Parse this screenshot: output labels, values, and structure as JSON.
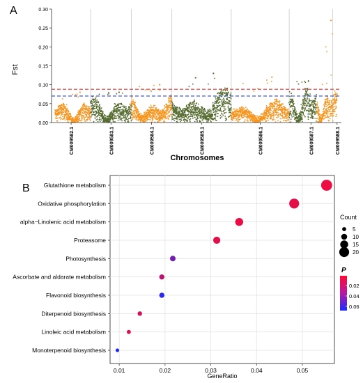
{
  "panel_a": {
    "label": "A",
    "ylabel": "Fst",
    "xlabel": "Chromosomes",
    "yticks": [
      "0.00",
      "0.05",
      "0.10",
      "0.15",
      "0.20",
      "0.25",
      "0.30"
    ],
    "chromosomes": [
      "CM009582.1",
      "CM009583.1",
      "CM009584.1",
      "CM009585.1",
      "CM009586.1",
      "CM009587.1",
      "CM009588.1"
    ]
  },
  "panel_b": {
    "label": "B",
    "xlabel": "GeneRatio",
    "xticks": [
      "0.01",
      "0.02",
      "0.03",
      "0.04",
      "0.05"
    ],
    "legend_count_title": "Count",
    "legend_count_labels": [
      "5",
      "10",
      "15",
      "20"
    ],
    "legend_p_title": "P",
    "legend_p_labels": [
      "0.02",
      "0.04",
      "0.06"
    ]
  },
  "chart_data": [
    {
      "type": "scatter",
      "ylabel": "Fst",
      "xlabel": "Chromosomes",
      "ylim": [
        0,
        0.3
      ],
      "categories": [
        "CM009582.1",
        "CM009583.1",
        "CM009584.1",
        "CM009585.1",
        "CM009586.1",
        "CM009587.1",
        "CM009588.1"
      ],
      "chromosome_colors": [
        "#f7941d",
        "#556b2f",
        "#f7941d",
        "#556b2f",
        "#f7941d",
        "#556b2f",
        "#f7941d"
      ],
      "series": [
        {
          "chromosome": "CM009582.1",
          "typical_fst": [
            0.0,
            0.06
          ],
          "max_fst": 0.08
        },
        {
          "chromosome": "CM009583.1",
          "typical_fst": [
            0.0,
            0.07
          ],
          "max_fst": 0.08
        },
        {
          "chromosome": "CM009584.1",
          "typical_fst": [
            0.0,
            0.07
          ],
          "max_fst": 0.1
        },
        {
          "chromosome": "CM009585.1",
          "typical_fst": [
            0.0,
            0.09
          ],
          "max_fst": 0.13
        },
        {
          "chromosome": "CM009586.1",
          "typical_fst": [
            0.0,
            0.06
          ],
          "max_fst": 0.12
        },
        {
          "chromosome": "CM009587.1",
          "typical_fst": [
            0.0,
            0.1
          ],
          "max_fst": 0.11
        },
        {
          "chromosome": "CM009588.1",
          "typical_fst": [
            0.0,
            0.09
          ],
          "max_fst": 0.27
        }
      ],
      "threshold_lines": [
        {
          "value": 0.088,
          "color": "#e8342e",
          "style": "dashed"
        },
        {
          "value": 0.07,
          "color": "#2a44d6",
          "style": "dashed"
        }
      ],
      "grid": "vertical separators"
    },
    {
      "type": "scatter",
      "xlabel": "GeneRatio",
      "xlim": [
        0.008,
        0.057
      ],
      "categories": [
        "Glutathione metabolism",
        "Oxidative phosphorylation",
        "alpha−Linolenic acid metabolism",
        "Proteasome",
        "Photosynthesis",
        "Ascorbate and aldarate metabolism",
        "Flavonoid biosynthesis",
        "Diterpenoid biosynthesis",
        "Linoleic acid metabolism",
        "Monoterpenoid biosynthesis"
      ],
      "gene_ratio": [
        0.0553,
        0.0482,
        0.0362,
        0.0313,
        0.0217,
        0.0193,
        0.0193,
        0.0145,
        0.0121,
        0.0096
      ],
      "count": [
        23,
        20,
        15,
        13,
        9,
        8,
        8,
        6,
        5,
        4
      ],
      "p_value": [
        0.01,
        0.012,
        0.011,
        0.013,
        0.045,
        0.025,
        0.065,
        0.018,
        0.015,
        0.067
      ],
      "size_legend": [
        5,
        10,
        15,
        20
      ],
      "color_scale": {
        "low": "#ff0a32",
        "high": "#1a2bff",
        "range": [
          0.005,
          0.07
        ]
      },
      "grid": true,
      "legend": "right"
    }
  ]
}
